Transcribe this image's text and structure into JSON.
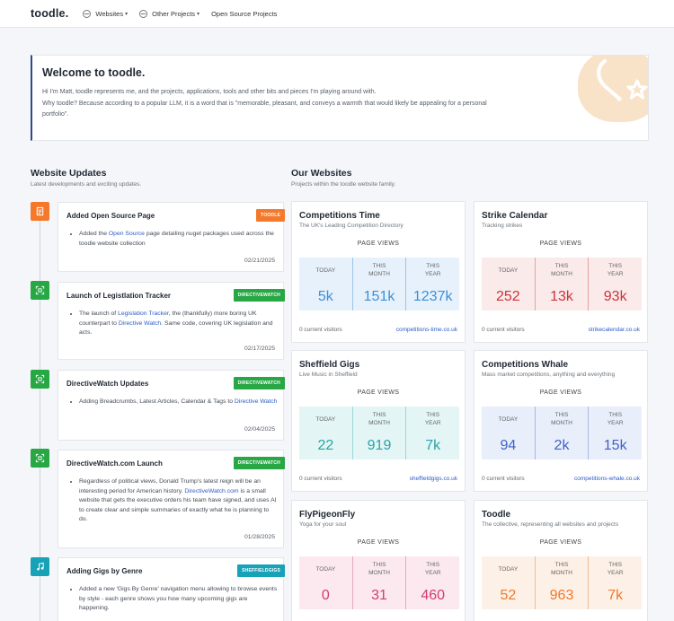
{
  "nav": {
    "brand": "toodle.",
    "items": [
      {
        "label": "Websites",
        "has_icon": true,
        "dropdown": true
      },
      {
        "label": "Other Projects",
        "has_icon": true,
        "dropdown": true
      },
      {
        "label": "Open Source Projects",
        "has_icon": false,
        "dropdown": false
      }
    ]
  },
  "welcome": {
    "title": "Welcome to toodle.",
    "line1": "Hi I'm Matt, toodle represents me, and the projects, applications, tools and other bits and pieces I'm playing around with.",
    "line2": "Why toodle? Because according to a popular LLM, it is a word that is \"memorable, pleasant, and conveys a warmth that would likely be appealing for a personal portfolio\"."
  },
  "updates_section": {
    "title": "Website Updates",
    "subtitle": "Latest developments and exciting updates."
  },
  "websites_section": {
    "title": "Our Websites",
    "subtitle": "Projects within the toodle website family."
  },
  "colors": {
    "accent": "#2e4a8a",
    "link": "#2c5cc5",
    "orange": "#f5792a",
    "green": "#28a745",
    "teal": "#17a2b8"
  },
  "updates": [
    {
      "title": "Added Open Source Page",
      "badge": "TOODLE",
      "icon": "document-icon",
      "body": [
        {
          "t": "Added the "
        },
        {
          "t": "Open Source",
          "link": true
        },
        {
          "t": " page detailing nuget packages used across the toodle website collection"
        }
      ],
      "date": "02/21/2025"
    },
    {
      "title": "Launch of Legistlation Tracker",
      "badge": "DIRECTIVEWATCH",
      "icon": "scan-icon",
      "body": [
        {
          "t": "The launch of "
        },
        {
          "t": "Legislation Tracker",
          "link": true
        },
        {
          "t": ", the (thankfully) more boring UK counterpart to "
        },
        {
          "t": "Directive Watch",
          "link": true
        },
        {
          "t": ". Same code, covering UK legislation and acts."
        }
      ],
      "date": "02/17/2025"
    },
    {
      "title": "DirectiveWatch Updates",
      "badge": "DIRECTIVEWATCH",
      "icon": "scan-icon",
      "body": [
        {
          "t": "Adding Breadcrumbs, Latest Articles, Calendar & Tags to "
        },
        {
          "t": "Directive Watch",
          "link": true
        }
      ],
      "date": "02/04/2025"
    },
    {
      "title": "DirectiveWatch.com Launch",
      "badge": "DIRECTIVEWATCH",
      "icon": "scan-icon",
      "body": [
        {
          "t": "Regardless of political views, Donald Trump's latest reign will be an interesting period for American history. "
        },
        {
          "t": "DirectiveWatch.com",
          "link": true
        },
        {
          "t": " is a small website that gets the executive orders his team have signed, and uses AI to create clear and simple summaries of exactly what he is planning to do."
        }
      ],
      "date": "01/28/2025"
    },
    {
      "title": "Adding Gigs by Genre",
      "badge": "SHEFFIELDGIGS",
      "icon": "music-icon",
      "body": [
        {
          "t": "Added a new 'Gigs By Genre' navigation menu allowing to browse events by style - each genre shows you how many upcoming gigs are happening."
        }
      ],
      "date": ""
    }
  ],
  "sites": [
    {
      "name": "Competitions Time",
      "tagline": "The UK's Leading Competition Directory",
      "page_views_label": "PAGE VIEWS",
      "today_label": "TODAY",
      "month_label": "THIS MONTH",
      "year_label": "THIS YEAR",
      "today": "5k",
      "month": "151k",
      "year": "1237k",
      "visitors": "0 current visitors",
      "url": "competitions-time.co.uk",
      "theme": "blue"
    },
    {
      "name": "Strike Calendar",
      "tagline": "Tracking strikes",
      "page_views_label": "PAGE VIEWS",
      "today_label": "TODAY",
      "month_label": "THIS MONTH",
      "year_label": "THIS YEAR",
      "today": "252",
      "month": "13k",
      "year": "93k",
      "visitors": "0 current visitors",
      "url": "strikecalendar.co.uk",
      "theme": "red"
    },
    {
      "name": "Sheffield Gigs",
      "tagline": "Live Music in Sheffield",
      "page_views_label": "PAGE VIEWS",
      "today_label": "TODAY",
      "month_label": "THIS MONTH",
      "year_label": "THIS YEAR",
      "today": "22",
      "month": "919",
      "year": "7k",
      "visitors": "0 current visitors",
      "url": "sheffieldgigs.co.uk",
      "theme": "teal"
    },
    {
      "name": "Competitions Whale",
      "tagline": "Mass market competitions, anything and everything",
      "page_views_label": "PAGE VIEWS",
      "today_label": "TODAY",
      "month_label": "THIS MONTH",
      "year_label": "THIS YEAR",
      "today": "94",
      "month": "2k",
      "year": "15k",
      "visitors": "0 current visitors",
      "url": "competitions-whale.co.uk",
      "theme": "indigo"
    },
    {
      "name": "FlyPigeonFly",
      "tagline": "Yoga for your soul",
      "page_views_label": "PAGE VIEWS",
      "today_label": "TODAY",
      "month_label": "THIS MONTH",
      "year_label": "THIS YEAR",
      "today": "0",
      "month": "31",
      "year": "460",
      "visitors": "",
      "url": "",
      "theme": "pink"
    },
    {
      "name": "Toodle",
      "tagline": "The collective, representing all websites and projects",
      "page_views_label": "PAGE VIEWS",
      "today_label": "TODAY",
      "month_label": "THIS MONTH",
      "year_label": "THIS YEAR",
      "today": "52",
      "month": "963",
      "year": "7k",
      "visitors": "",
      "url": "",
      "theme": "orange"
    }
  ]
}
